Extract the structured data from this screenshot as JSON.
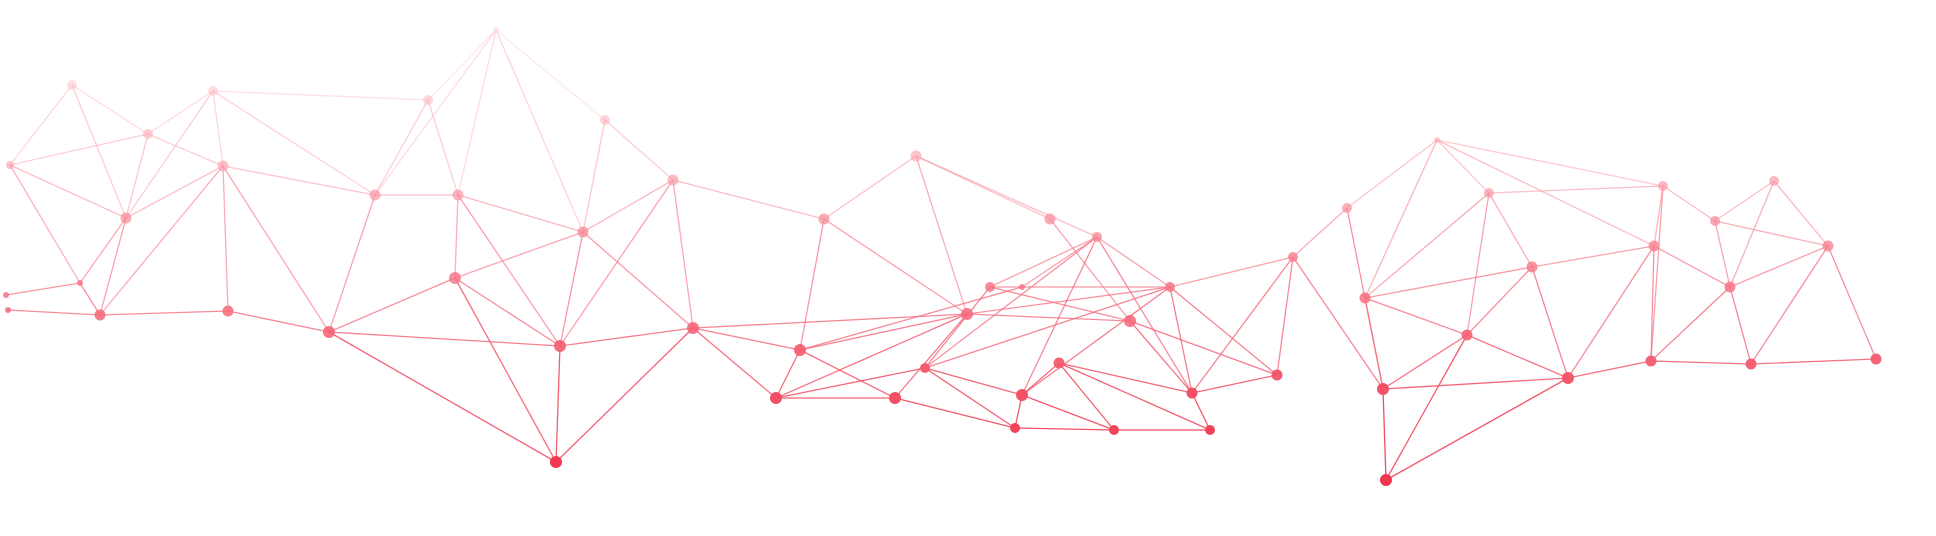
{
  "graphic": {
    "name": "polygonal-network-mesh",
    "accent_color": "#f0364f",
    "fade_color": "#ffd9de",
    "background_color": "#ffffff"
  }
}
